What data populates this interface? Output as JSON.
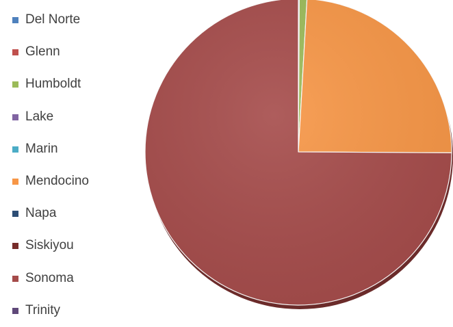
{
  "chart_data": {
    "type": "pie",
    "title": "",
    "legend_position": "left",
    "categories": [
      "Del Norte",
      "Glenn",
      "Humboldt",
      "Lake",
      "Marin",
      "Mendocino",
      "Napa",
      "Siskiyou",
      "Sonoma",
      "Trinity"
    ],
    "values": [
      0.1,
      0.0,
      0.8,
      0.0,
      0.0,
      24.2,
      0.0,
      0.0,
      74.9,
      0.0
    ],
    "colors": [
      "#4f81bd",
      "#c0504d",
      "#9bbb59",
      "#8064a2",
      "#4bacc6",
      "#f79646",
      "#2c4d75",
      "#772c2a",
      "#a54b4a",
      "#5f4879"
    ]
  }
}
